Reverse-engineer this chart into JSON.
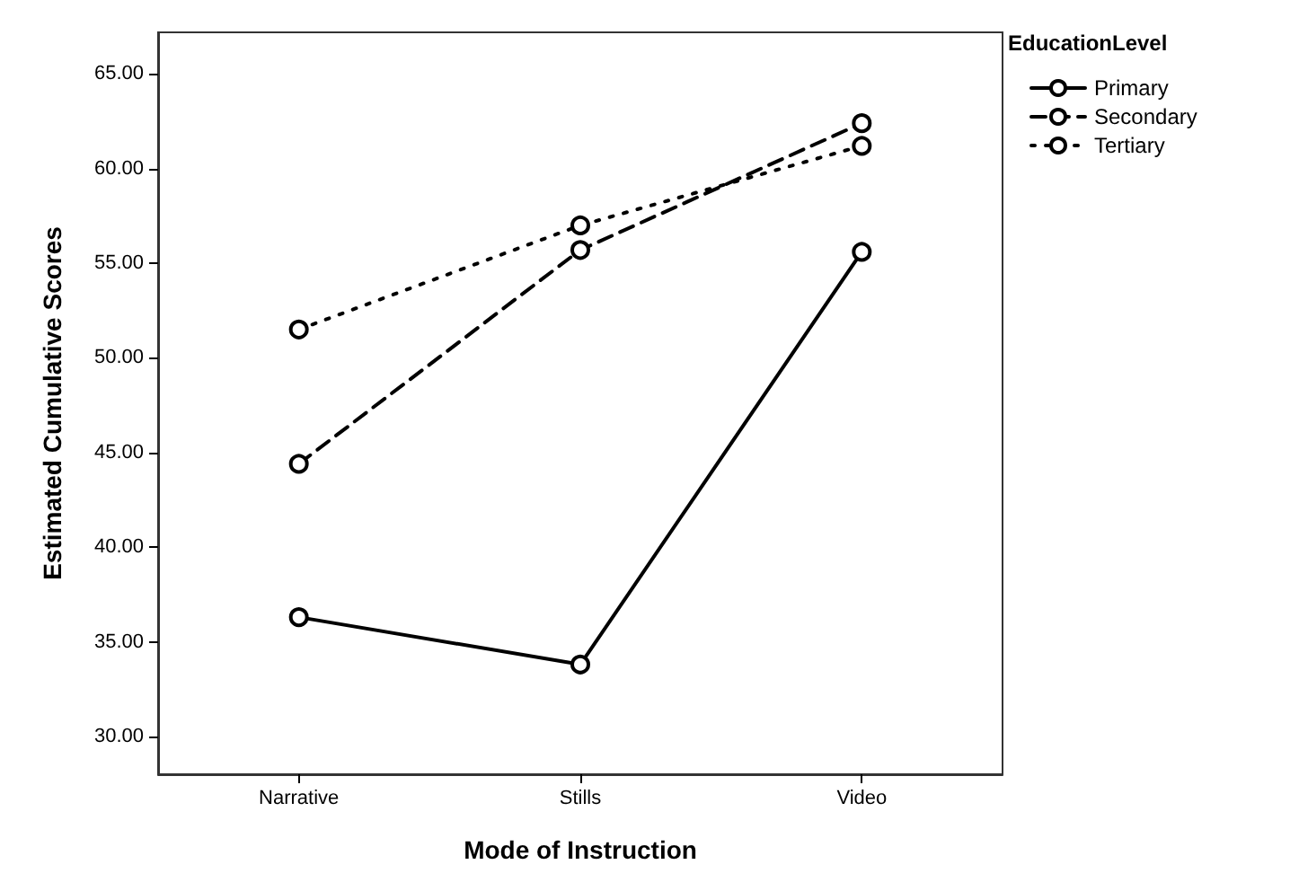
{
  "chart_data": {
    "type": "line",
    "xlabel": "Mode of Instruction",
    "ylabel": "Estimated Cumulative Scores",
    "legend_title": "EducationLevel",
    "categories": [
      "Narrative",
      "Stills",
      "Video"
    ],
    "series": [
      {
        "name": "Primary",
        "color": "#000000",
        "line_style": "solid",
        "values": [
          36.3,
          33.8,
          55.6
        ]
      },
      {
        "name": "Secondary",
        "color": "#000000",
        "line_style": "dashed",
        "values": [
          44.4,
          55.7,
          62.4
        ]
      },
      {
        "name": "Tertiary",
        "color": "#000000",
        "line_style": "dotted",
        "values": [
          51.5,
          57.0,
          61.2
        ]
      }
    ],
    "ylim": [
      28,
      67.2
    ],
    "yticks": [
      {
        "value": 30,
        "label": "30.00"
      },
      {
        "value": 35,
        "label": "35.00"
      },
      {
        "value": 40,
        "label": "40.00"
      },
      {
        "value": 45,
        "label": "45.00"
      },
      {
        "value": 50,
        "label": "50.00"
      },
      {
        "value": 55,
        "label": "55.00"
      },
      {
        "value": 60,
        "label": "60.00"
      },
      {
        "value": 65,
        "label": "65.00"
      }
    ],
    "marker": "circle",
    "legend": "top right",
    "grid": false
  }
}
